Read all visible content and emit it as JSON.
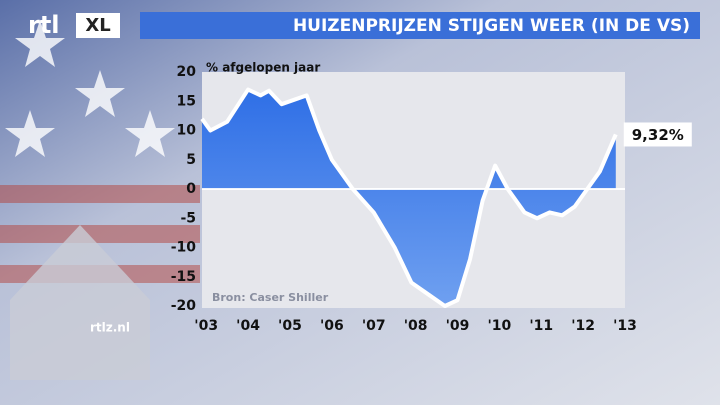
{
  "brand": {
    "logo": "rtl",
    "logo_badge": "XL",
    "site": "rtlz.nl"
  },
  "chart_data": {
    "type": "line",
    "title": "HUIZENPRIJZEN STIJGEN WEER (IN DE VS)",
    "y_label": "% afgelopen jaar",
    "source": "Bron: Caser Shiller",
    "x": [
      2002.9,
      2003.1,
      2003.5,
      2004.0,
      2004.3,
      2004.5,
      2004.8,
      2005.2,
      2005.4,
      2005.7,
      2006.0,
      2006.5,
      2007.0,
      2007.5,
      2007.9,
      2008.3,
      2008.7,
      2009.0,
      2009.3,
      2009.6,
      2009.9,
      2010.2,
      2010.6,
      2010.9,
      2011.2,
      2011.5,
      2011.8,
      2012.1,
      2012.4,
      2012.78
    ],
    "series": [
      {
        "name": "Case-Shiller",
        "color": "#ffffff",
        "fill": "#3c7be8",
        "values": [
          12,
          10,
          11.5,
          17,
          16,
          16.8,
          14.5,
          15.5,
          16,
          10,
          5,
          0,
          -4,
          -10,
          -16,
          -18,
          -20,
          -19,
          -12,
          -2,
          4,
          0,
          -4,
          -5,
          -4,
          -4.5,
          -3,
          0,
          3,
          9.32
        ],
        "value_labels": [
          null,
          null,
          null,
          null,
          null,
          null,
          null,
          null,
          null,
          null,
          null,
          null,
          null,
          null,
          null,
          null,
          null,
          null,
          null,
          null,
          null,
          null,
          null,
          null,
          null,
          null,
          null,
          null,
          null,
          "9,32%"
        ]
      }
    ],
    "xlim": [
      2002.9,
      2013
    ],
    "xticks": [
      {
        "value": 2003,
        "label": "'03"
      },
      {
        "value": 2004,
        "label": "'04"
      },
      {
        "value": 2005,
        "label": "'05"
      },
      {
        "value": 2006,
        "label": "'06"
      },
      {
        "value": 2007,
        "label": "'07"
      },
      {
        "value": 2008,
        "label": "'08"
      },
      {
        "value": 2009,
        "label": "'09"
      },
      {
        "value": 2010,
        "label": "'10"
      },
      {
        "value": 2011,
        "label": "'11"
      },
      {
        "value": 2012,
        "label": "'12"
      },
      {
        "value": 2013,
        "label": "'13"
      }
    ],
    "ylim": [
      -20,
      20
    ],
    "yticks": [
      -20,
      -15,
      -10,
      -5,
      0,
      5,
      10,
      15,
      20
    ]
  }
}
